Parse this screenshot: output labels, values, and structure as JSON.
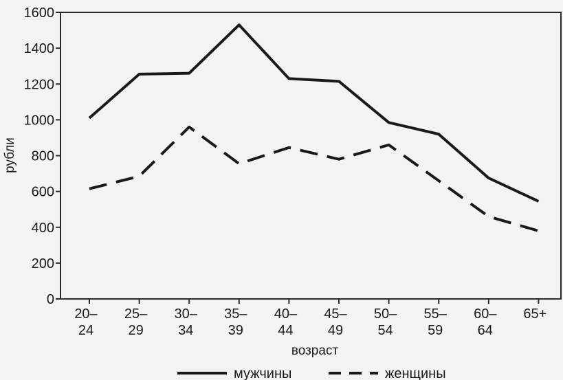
{
  "chart_data": {
    "type": "line",
    "xlabel": "возраст",
    "ylabel": "рубли",
    "ylim": [
      0,
      1600
    ],
    "yticks": [
      "0",
      "200",
      "400",
      "600",
      "800",
      "1000",
      "1200",
      "1400",
      "1600"
    ],
    "categories": [
      [
        "20–",
        "24"
      ],
      [
        "25–",
        "29"
      ],
      [
        "30–",
        "34"
      ],
      [
        "35–",
        "39"
      ],
      [
        "40–",
        "44"
      ],
      [
        "45–",
        "49"
      ],
      [
        "50–",
        "54"
      ],
      [
        "55–",
        "59"
      ],
      [
        "60–",
        "64"
      ],
      [
        "65+",
        ""
      ]
    ],
    "series": [
      {
        "name": "мужчины",
        "style": "solid",
        "color": "#1a1a1a",
        "values": [
          1010,
          1255,
          1260,
          1530,
          1230,
          1215,
          985,
          920,
          675,
          545
        ]
      },
      {
        "name": "женщины",
        "style": "dashed",
        "color": "#1a1a1a",
        "values": [
          615,
          685,
          960,
          755,
          845,
          780,
          860,
          660,
          460,
          380
        ]
      }
    ],
    "grid": false,
    "legend_position": "bottom"
  }
}
